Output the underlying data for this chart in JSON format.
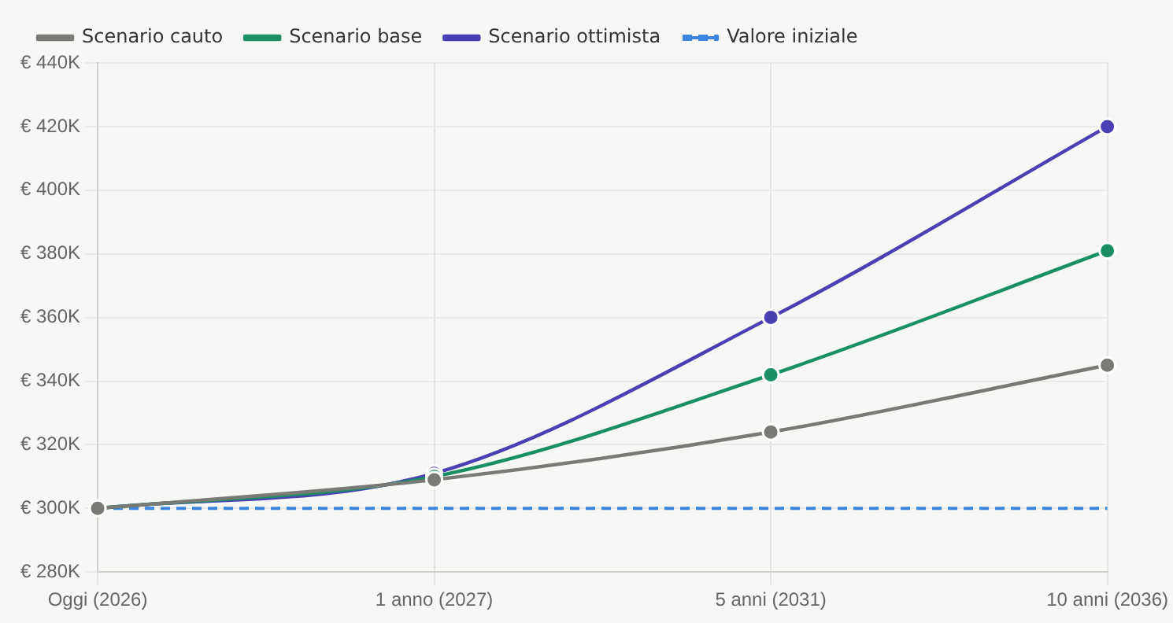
{
  "chart_data": {
    "type": "line",
    "categories": [
      "Oggi (2026)",
      "1 anno (2027)",
      "5 anni (2031)",
      "10 anni (2036)"
    ],
    "series": [
      {
        "name": "Scenario cauto",
        "color": "#7a7a74",
        "values": [
          300000,
          309000,
          324000,
          345000
        ]
      },
      {
        "name": "Scenario base",
        "color": "#1a8f64",
        "values": [
          300000,
          310000,
          342000,
          381000
        ]
      },
      {
        "name": "Scenario ottimista",
        "color": "#4a3fb3",
        "values": [
          300000,
          311000,
          360000,
          420000
        ]
      },
      {
        "name": "Valore iniziale",
        "color": "#3a86e0",
        "values": [
          300000,
          300000,
          300000,
          300000
        ],
        "line_style": "dashed",
        "marker": "none"
      }
    ],
    "ylim": [
      280000,
      440000
    ],
    "yticks": [
      {
        "value": 280000,
        "label": "€ 280K"
      },
      {
        "value": 300000,
        "label": "€ 300K"
      },
      {
        "value": 320000,
        "label": "€ 320K"
      },
      {
        "value": 340000,
        "label": "€ 340K"
      },
      {
        "value": 360000,
        "label": "€ 360K"
      },
      {
        "value": 380000,
        "label": "€ 380K"
      },
      {
        "value": 400000,
        "label": "€ 400K"
      },
      {
        "value": 420000,
        "label": "€ 420K"
      },
      {
        "value": 440000,
        "label": "€ 440K"
      }
    ],
    "grid": true,
    "legend": "top left",
    "marker": "circle",
    "line_style": "solid"
  }
}
